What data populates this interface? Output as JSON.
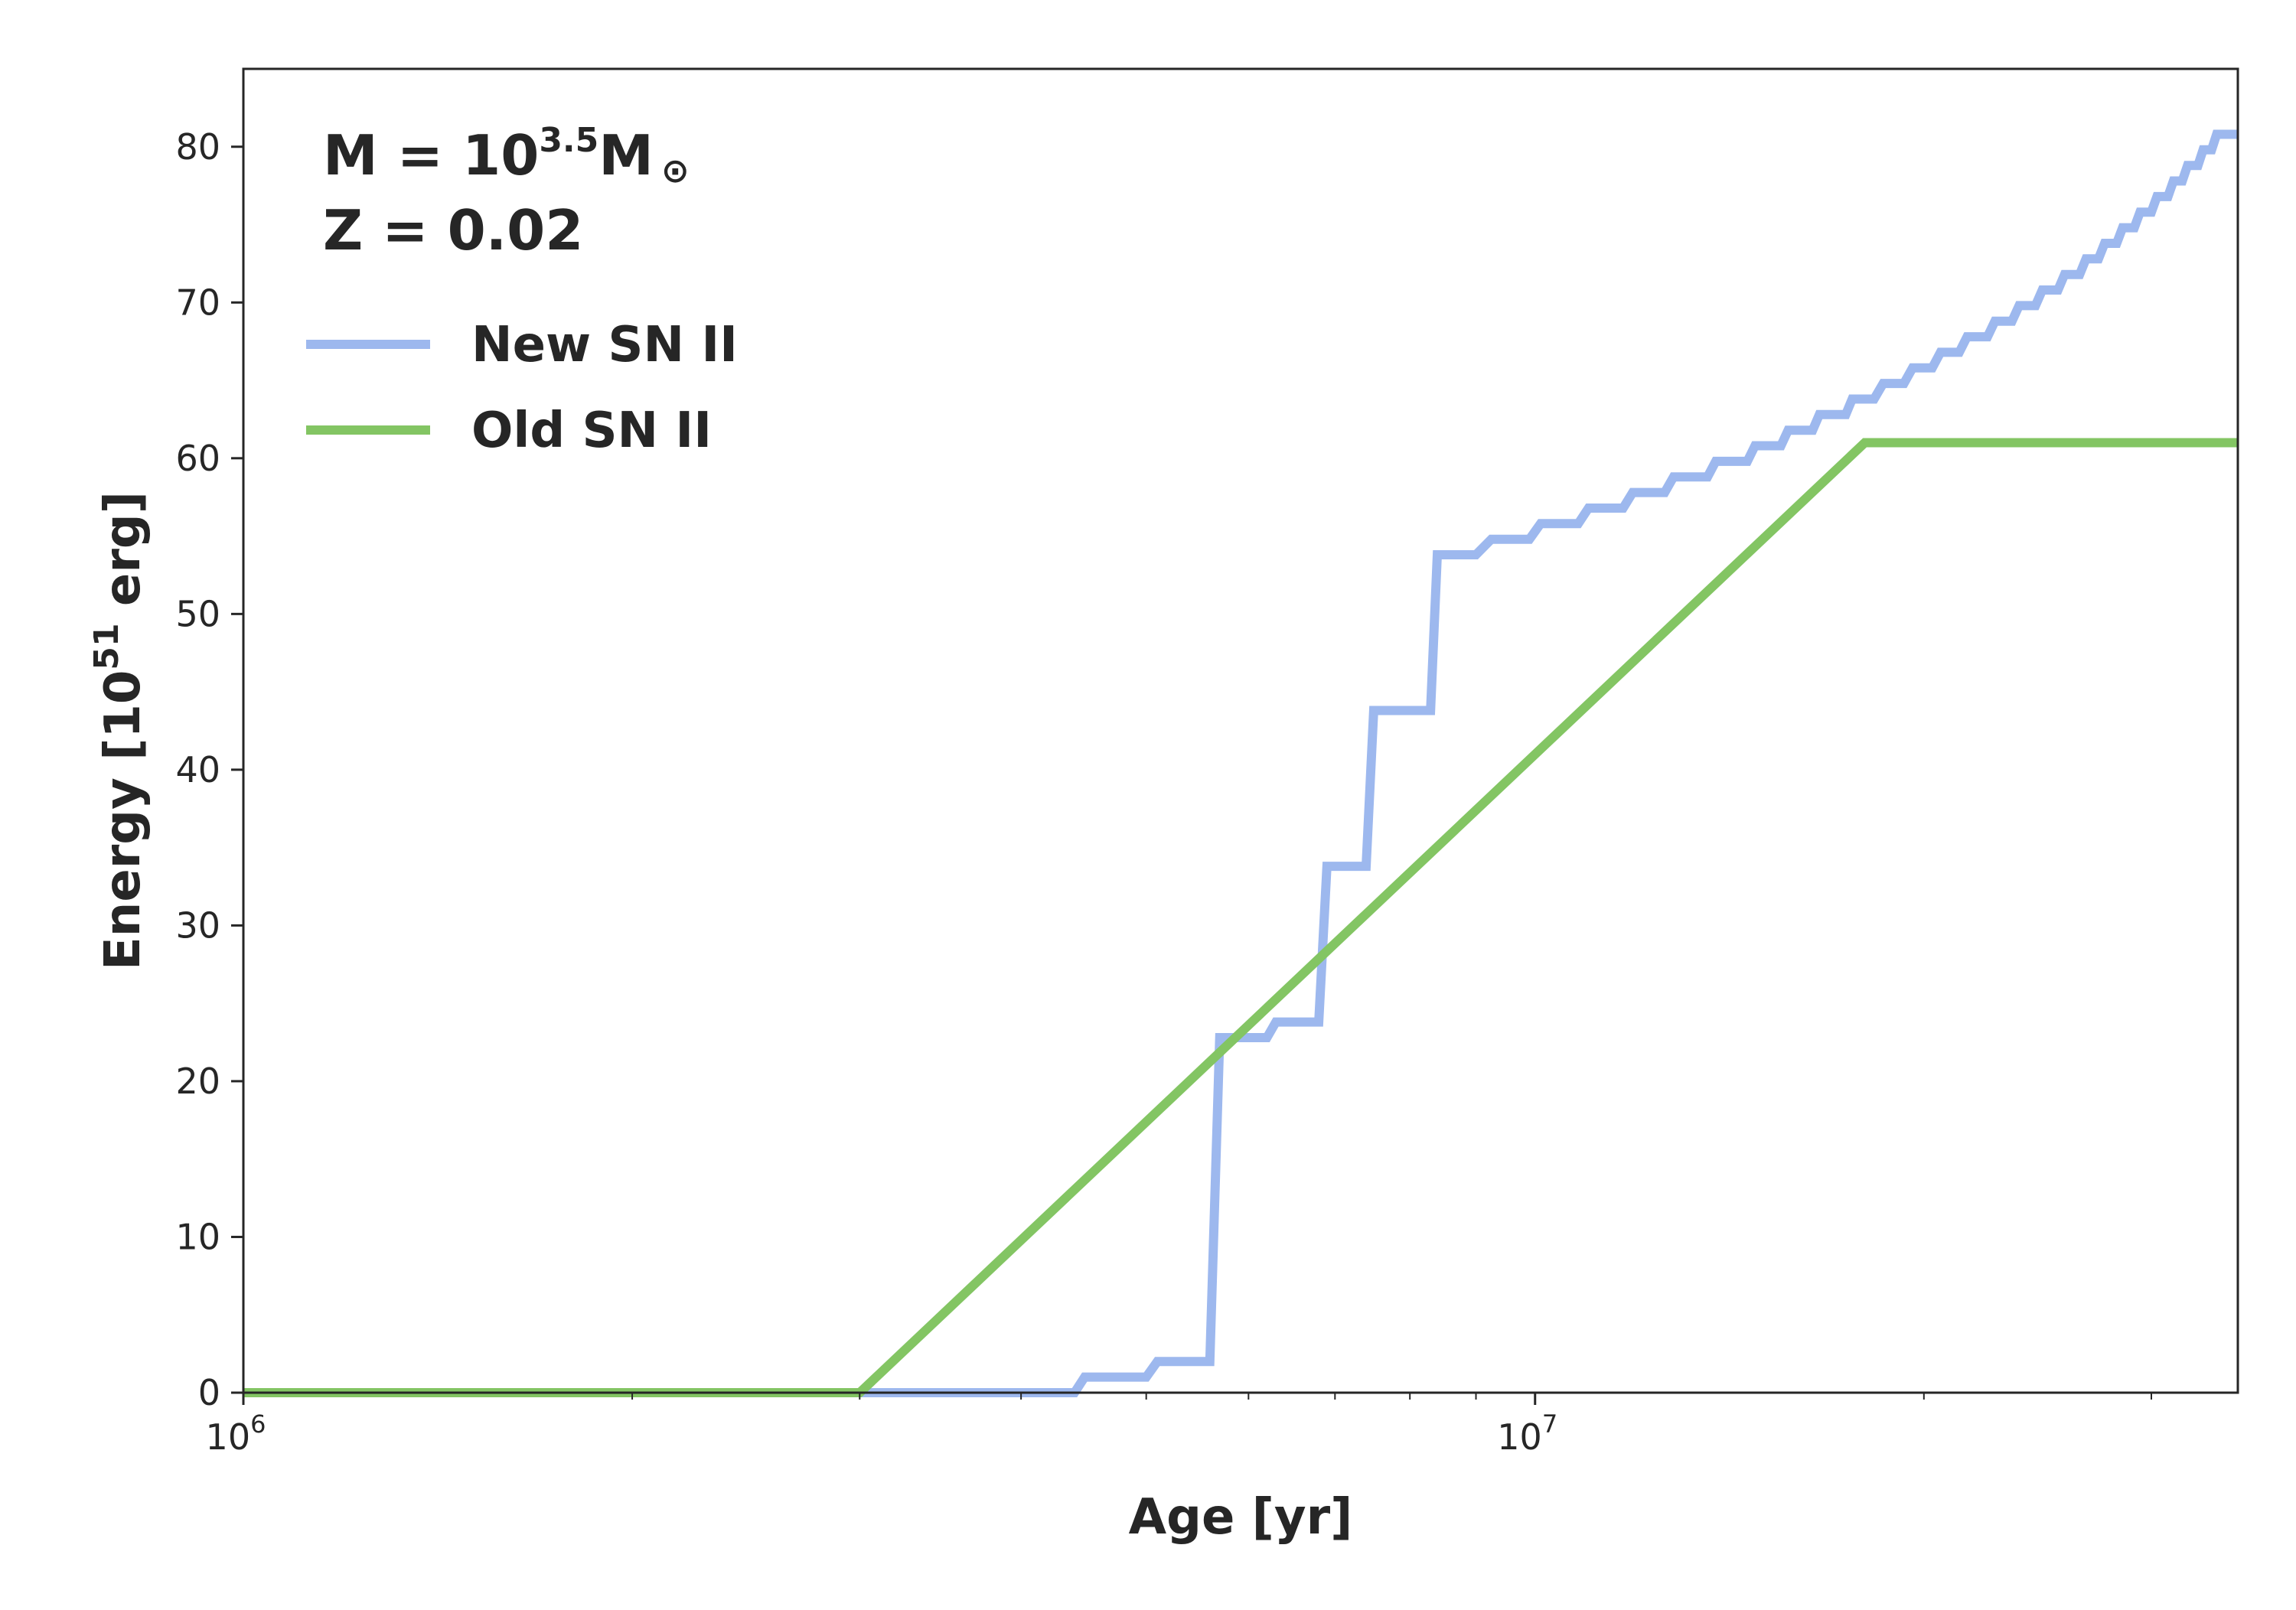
{
  "chart_data": {
    "type": "line",
    "xlabel": "Age [yr]",
    "ylabel_main": "Energy [10",
    "ylabel_exp": "51",
    "ylabel_end": " erg]",
    "xscale": "log",
    "xlim": [
      1000000,
      35000000
    ],
    "ylim": [
      0,
      85
    ],
    "yticks": [
      0,
      10,
      20,
      30,
      40,
      50,
      60,
      70,
      80
    ],
    "xticks_major": [
      {
        "value": 1000000,
        "base": "10",
        "exp": "6"
      },
      {
        "value": 10000000,
        "base": "10",
        "exp": "7"
      }
    ],
    "xticks_minor": [
      2000000,
      3000000,
      4000000,
      5000000,
      6000000,
      7000000,
      8000000,
      9000000,
      20000000,
      30000000
    ],
    "grid": false,
    "legend_position": "upper-left",
    "annotation": {
      "mass_prefix": "M = 10",
      "mass_exp": "3.5",
      "mass_unit": "M",
      "mass_symbol": "⊙",
      "metallicity": "Z = 0.02"
    },
    "series": [
      {
        "name": "New SN II",
        "color": "#9db8ee",
        "points": [
          [
            1000000,
            0
          ],
          [
            4400000,
            0
          ],
          [
            4480000,
            1
          ],
          [
            5000000,
            1
          ],
          [
            5100000,
            2
          ],
          [
            5600000,
            2
          ],
          [
            5700000,
            22.8
          ],
          [
            6200000,
            22.8
          ],
          [
            6300000,
            23.8
          ],
          [
            6800000,
            23.8
          ],
          [
            6900000,
            33.8
          ],
          [
            7400000,
            33.8
          ],
          [
            7500000,
            43.8
          ],
          [
            8300000,
            43.8
          ],
          [
            8400000,
            53.8
          ],
          [
            9000000,
            53.8
          ],
          [
            9250000,
            54.8
          ],
          [
            9900000,
            54.8
          ],
          [
            10100000,
            55.8
          ],
          [
            10800000,
            55.8
          ],
          [
            11000000,
            56.8
          ],
          [
            11700000,
            56.8
          ],
          [
            11900000,
            57.8
          ],
          [
            12600000,
            57.8
          ],
          [
            12800000,
            58.8
          ],
          [
            13600000,
            58.8
          ],
          [
            13800000,
            59.8
          ],
          [
            14600000,
            59.8
          ],
          [
            14800000,
            60.8
          ],
          [
            15500000,
            60.8
          ],
          [
            15700000,
            61.8
          ],
          [
            16400000,
            61.8
          ],
          [
            16600000,
            62.8
          ],
          [
            17400000,
            62.8
          ],
          [
            17600000,
            63.8
          ],
          [
            18300000,
            63.8
          ],
          [
            18600000,
            64.8
          ],
          [
            19300000,
            64.8
          ],
          [
            19600000,
            65.8
          ],
          [
            20300000,
            65.8
          ],
          [
            20600000,
            66.8
          ],
          [
            21300000,
            66.8
          ],
          [
            21600000,
            67.8
          ],
          [
            22400000,
            67.8
          ],
          [
            22700000,
            68.8
          ],
          [
            23400000,
            68.8
          ],
          [
            23700000,
            69.8
          ],
          [
            24400000,
            69.8
          ],
          [
            24700000,
            70.8
          ],
          [
            25400000,
            70.8
          ],
          [
            25700000,
            71.8
          ],
          [
            26400000,
            71.8
          ],
          [
            26700000,
            72.8
          ],
          [
            27300000,
            72.8
          ],
          [
            27600000,
            73.8
          ],
          [
            28200000,
            73.8
          ],
          [
            28500000,
            74.8
          ],
          [
            29100000,
            74.8
          ],
          [
            29400000,
            75.8
          ],
          [
            30000000,
            75.8
          ],
          [
            30300000,
            76.8
          ],
          [
            30900000,
            76.8
          ],
          [
            31200000,
            77.8
          ],
          [
            31700000,
            77.8
          ],
          [
            32000000,
            78.8
          ],
          [
            32600000,
            78.8
          ],
          [
            32900000,
            79.8
          ],
          [
            33400000,
            79.8
          ],
          [
            33700000,
            80.8
          ],
          [
            35000000,
            80.8
          ]
        ]
      },
      {
        "name": "Old SN II",
        "color": "#83c563",
        "points": [
          [
            1000000,
            0
          ],
          [
            3000000,
            0
          ],
          [
            18000000,
            61
          ],
          [
            35000000,
            61
          ]
        ]
      }
    ]
  }
}
